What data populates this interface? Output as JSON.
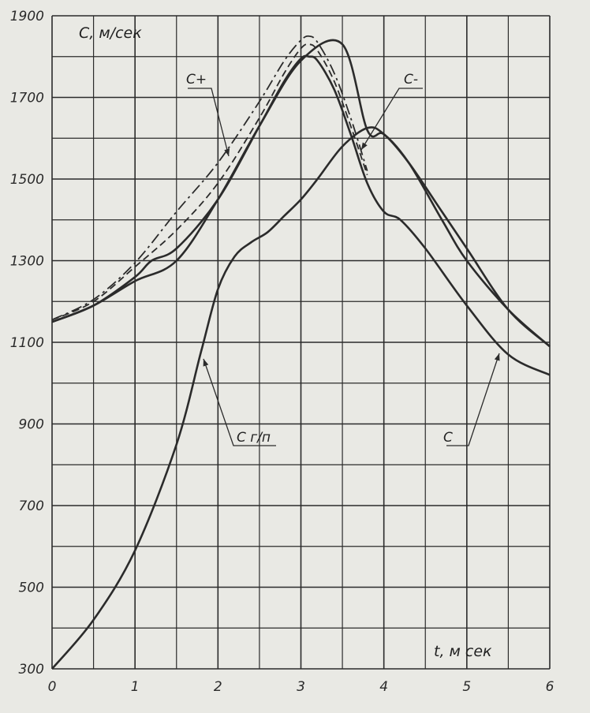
{
  "chart_data": {
    "type": "line",
    "title": "",
    "xlabel": "t, м сек",
    "ylabel": "С, м/сек",
    "xlim": [
      0,
      6
    ],
    "ylim": [
      300,
      1900
    ],
    "grid": true,
    "x_ticks": [
      "0",
      "1",
      "2",
      "3",
      "4",
      "5",
      "6"
    ],
    "y_ticks": [
      "300",
      "500",
      "700",
      "900",
      "1100",
      "1300",
      "1500",
      "1700",
      "1900"
    ],
    "line_color": "#2b2b2b",
    "series": [
      {
        "name": "С+",
        "style": "dashdot",
        "x": [
          0,
          0.5,
          1.0,
          1.5,
          2.0,
          2.5,
          2.8,
          3.0,
          3.1,
          3.2,
          3.4,
          3.6,
          3.8
        ],
        "y": [
          1155,
          1205,
          1295,
          1420,
          1540,
          1690,
          1790,
          1840,
          1850,
          1835,
          1760,
          1650,
          1520
        ]
      },
      {
        "name": "",
        "style": "dashed",
        "x": [
          0,
          0.5,
          1.0,
          1.5,
          2.0,
          2.5,
          2.8,
          3.0,
          3.1,
          3.2,
          3.4,
          3.6,
          3.8
        ],
        "y": [
          1155,
          1200,
          1285,
          1375,
          1490,
          1650,
          1760,
          1820,
          1830,
          1815,
          1740,
          1630,
          1510
        ]
      },
      {
        "name": "С",
        "style": "solid",
        "x": [
          0,
          0.5,
          1.0,
          1.2,
          1.5,
          2.0,
          2.5,
          2.8,
          3.0,
          3.1,
          3.2,
          3.4,
          3.6,
          3.8,
          4.0,
          4.2,
          4.5,
          5.0,
          5.5,
          6.0
        ],
        "y": [
          1150,
          1190,
          1260,
          1300,
          1330,
          1450,
          1630,
          1740,
          1795,
          1800,
          1790,
          1720,
          1610,
          1490,
          1420,
          1400,
          1330,
          1190,
          1070,
          1020
        ]
      },
      {
        "name": "С-",
        "style": "solid",
        "x": [
          0,
          0.5,
          1.0,
          1.5,
          2.0,
          2.5,
          3.0,
          3.5,
          3.8,
          4.0,
          4.3,
          4.7,
          5.0,
          5.5,
          6.0
        ],
        "y": [
          1150,
          1190,
          1250,
          1300,
          1450,
          1630,
          1790,
          1830,
          1620,
          1610,
          1540,
          1400,
          1300,
          1180,
          1090
        ]
      },
      {
        "name": "С г/п",
        "style": "solid",
        "x": [
          0,
          0.5,
          1.0,
          1.5,
          1.8,
          2.0,
          2.2,
          2.4,
          2.6,
          2.8,
          3.0,
          3.2,
          3.5,
          3.8,
          4.0,
          4.3,
          4.7,
          5.0,
          5.5,
          6.0
        ],
        "y": [
          300,
          420,
          590,
          850,
          1080,
          1230,
          1310,
          1345,
          1370,
          1410,
          1450,
          1500,
          1580,
          1625,
          1610,
          1540,
          1420,
          1330,
          1180,
          1090
        ]
      }
    ],
    "annotations": [
      {
        "text": "С+",
        "for": "С+"
      },
      {
        "text": "С-",
        "for": "С-"
      },
      {
        "text": "С г/п",
        "for": "С г/п"
      },
      {
        "text": "С",
        "for": "С"
      }
    ]
  }
}
